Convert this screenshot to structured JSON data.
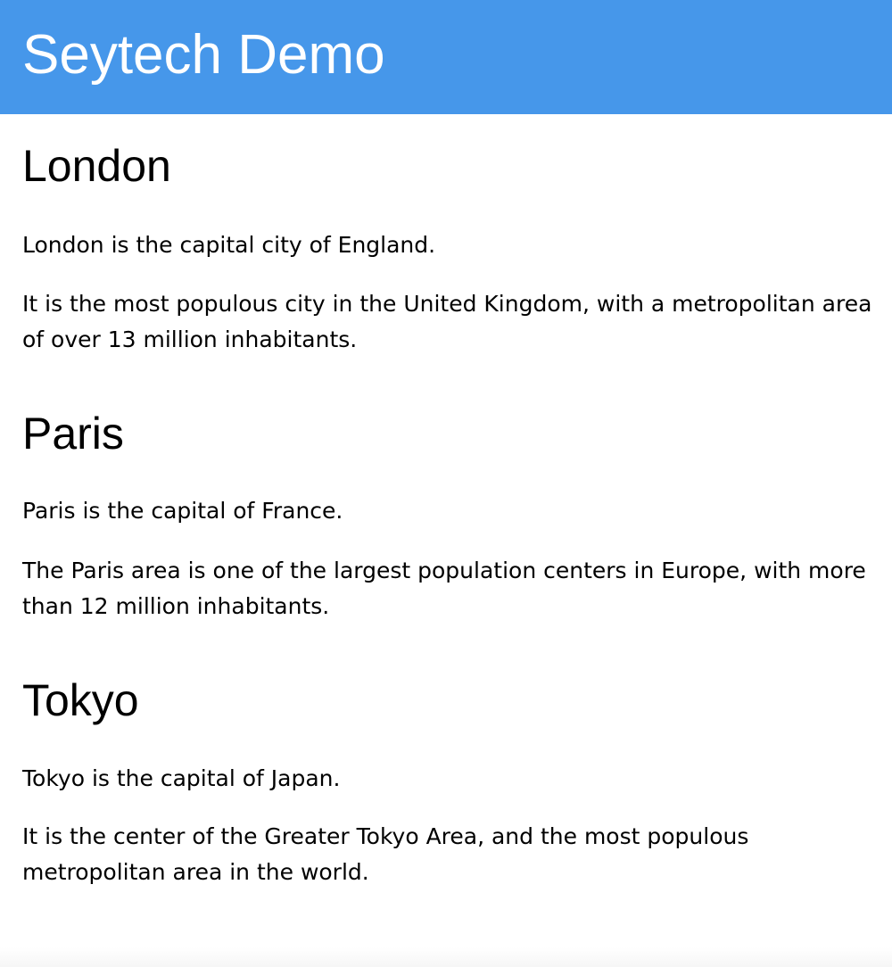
{
  "header": {
    "title": "Seytech Demo",
    "background_color": "#4697ea",
    "text_color": "#ffffff"
  },
  "cities": [
    {
      "name": "London",
      "paragraphs": [
        "London is the capital city of England.",
        "It is the most populous city in the United Kingdom, with a metropolitan area of over 13 million inhabitants."
      ]
    },
    {
      "name": "Paris",
      "paragraphs": [
        "Paris is the capital of France.",
        "The Paris area is one of the largest population centers in Europe, with more than 12 million inhabitants."
      ]
    },
    {
      "name": "Tokyo",
      "paragraphs": [
        "Tokyo is the capital of Japan.",
        "It is the center of the Greater Tokyo Area, and the most populous metropolitan area in the world."
      ]
    }
  ]
}
